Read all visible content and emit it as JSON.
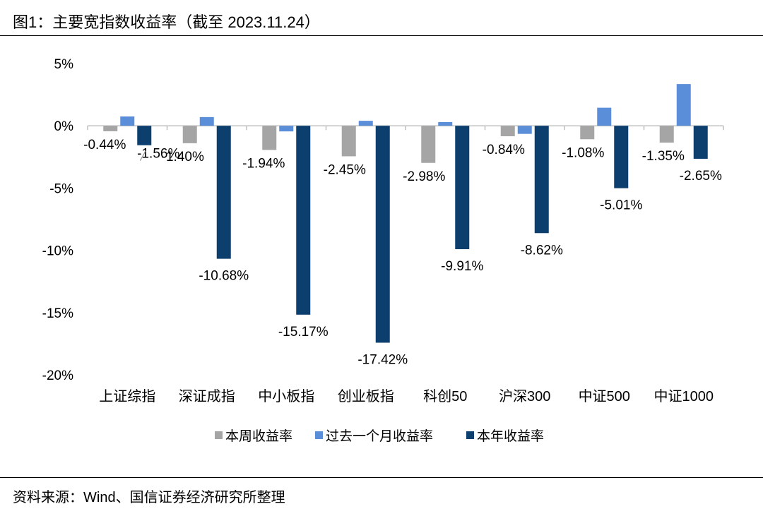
{
  "title": "图1：主要宽指数收益率（截至 2023.11.24）",
  "source": "资料来源：Wind、国信证券经济研究所整理",
  "chart_data": {
    "type": "bar",
    "categories": [
      "上证综指",
      "深证成指",
      "中小板指",
      "创业板指",
      "科创50",
      "沪深300",
      "中证500",
      "中证1000"
    ],
    "series": [
      {
        "name": "本周收益率",
        "color": "#a5a5a5",
        "values": [
          -0.44,
          -1.4,
          -1.94,
          -2.45,
          -2.98,
          -0.84,
          -1.08,
          -1.35
        ],
        "labels": [
          "-0.44%",
          "-1.40%",
          "-1.94%",
          "-2.45%",
          "-2.98%",
          "-0.84%",
          "-1.08%",
          "-1.35%"
        ]
      },
      {
        "name": "过去一个月收益率",
        "color": "#5b8ed8",
        "values": [
          0.75,
          0.7,
          -0.45,
          0.4,
          0.3,
          -0.65,
          1.45,
          3.35
        ]
      },
      {
        "name": "本年收益率",
        "color": "#0c3f6e",
        "values": [
          -1.56,
          -10.68,
          -15.17,
          -17.42,
          -9.91,
          -8.62,
          -5.01,
          -2.65
        ],
        "labels": [
          "-1.56%",
          "-10.68%",
          "-15.17%",
          "-17.42%",
          "-9.91%",
          "-8.62%",
          "-5.01%",
          "-2.65%"
        ]
      }
    ],
    "yticks": [
      "5%",
      "0%",
      "-5%",
      "-10%",
      "-15%",
      "-20%"
    ],
    "ylim": [
      -20,
      5
    ],
    "legend_position": "bottom"
  }
}
